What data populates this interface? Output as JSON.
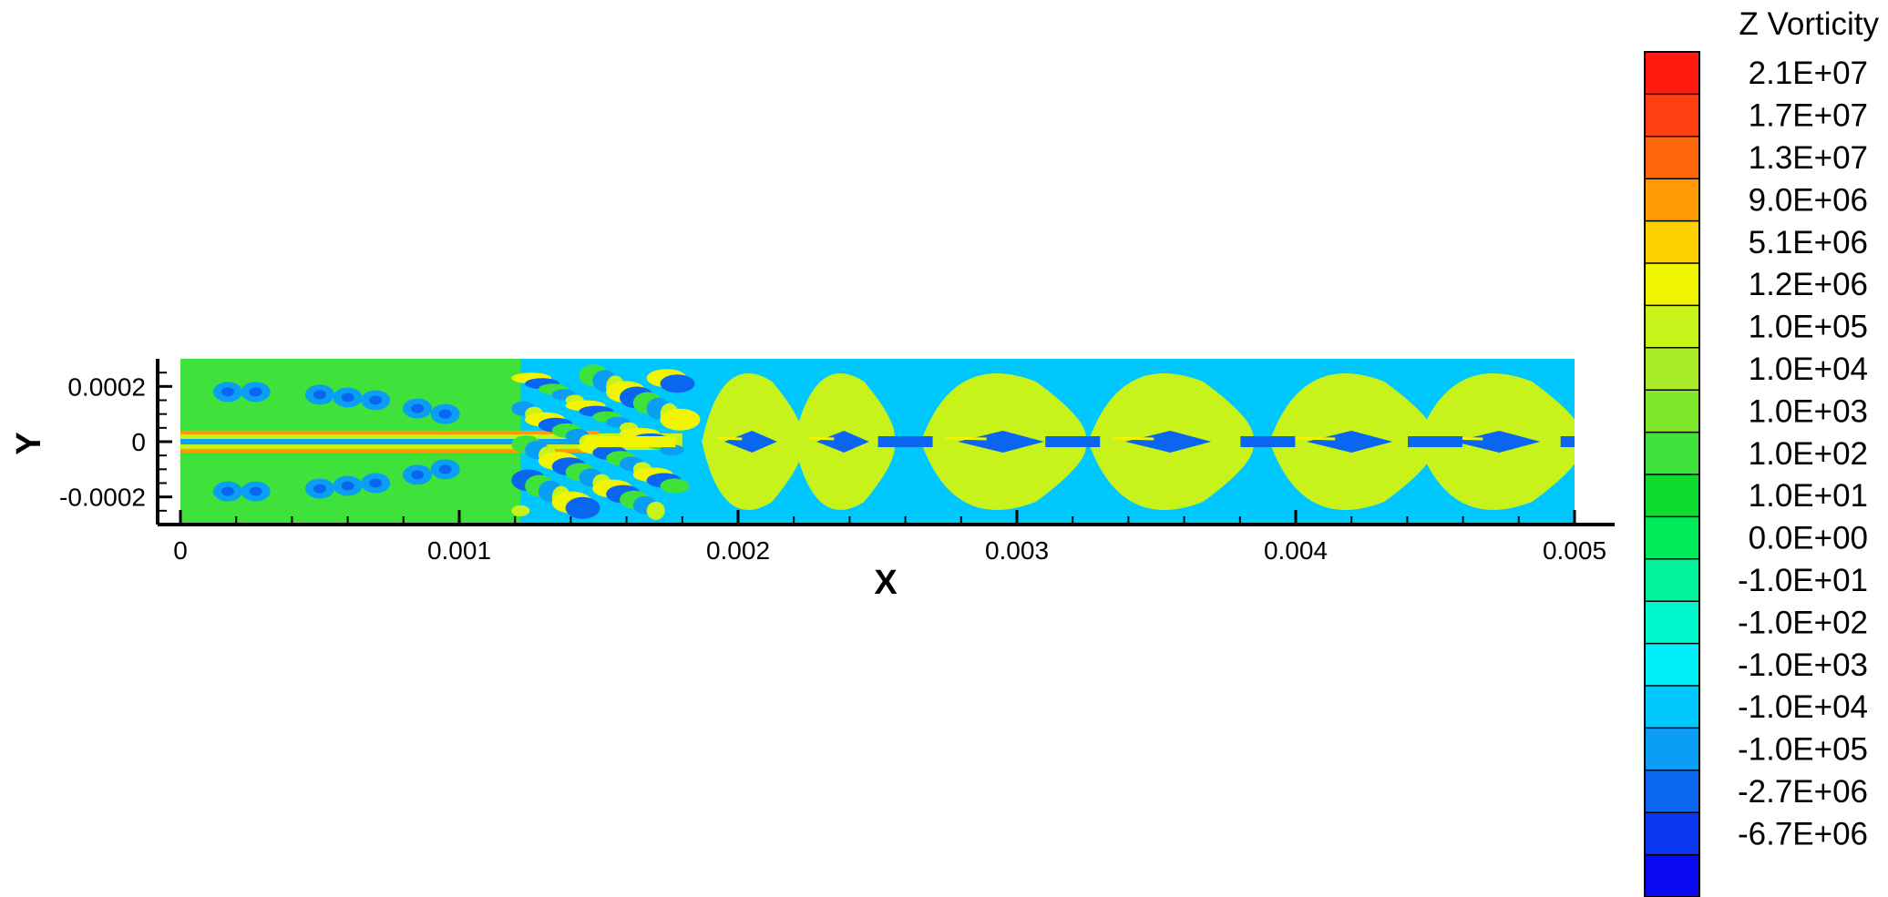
{
  "chart_data": {
    "type": "heatmap",
    "title": "",
    "xlabel": "X",
    "ylabel": "Y",
    "xlim": [
      0,
      0.005
    ],
    "ylim": [
      -0.0003,
      0.0003
    ],
    "x_ticks": [
      "0",
      "0.001",
      "0.002",
      "0.003",
      "0.004",
      "0.005"
    ],
    "x_tick_values": [
      0,
      0.001,
      0.002,
      0.003,
      0.004,
      0.005
    ],
    "y_ticks": [
      "0.0002",
      "0",
      "-0.0002"
    ],
    "y_tick_values": [
      0.0002,
      0,
      -0.0002
    ],
    "legend": {
      "title": "Z Vorticity",
      "placement": "right",
      "levels": [
        "2.1E+07",
        "1.7E+07",
        "1.3E+07",
        "9.0E+06",
        "5.1E+06",
        "1.2E+06",
        "1.0E+05",
        "1.0E+04",
        "1.0E+03",
        "1.0E+02",
        "1.0E+01",
        "0.0E+00",
        "-1.0E+01",
        "-1.0E+02",
        "-1.0E+03",
        "-1.0E+04",
        "-1.0E+05",
        "-2.7E+06",
        "-6.7E+06"
      ],
      "colors": [
        "#ff1a10",
        "#ff3f0f",
        "#ff650a",
        "#ff9a05",
        "#ffd000",
        "#f1f500",
        "#c8f31a",
        "#a9ec2a",
        "#7fe82a",
        "#3fe23a",
        "#10dc30",
        "#00ea5a",
        "#00f29a",
        "#00f6cc",
        "#00f0f8",
        "#00c8ff",
        "#0a9ef5",
        "#0a66f0",
        "#0a38f0",
        "#0a0af0"
      ]
    }
  }
}
